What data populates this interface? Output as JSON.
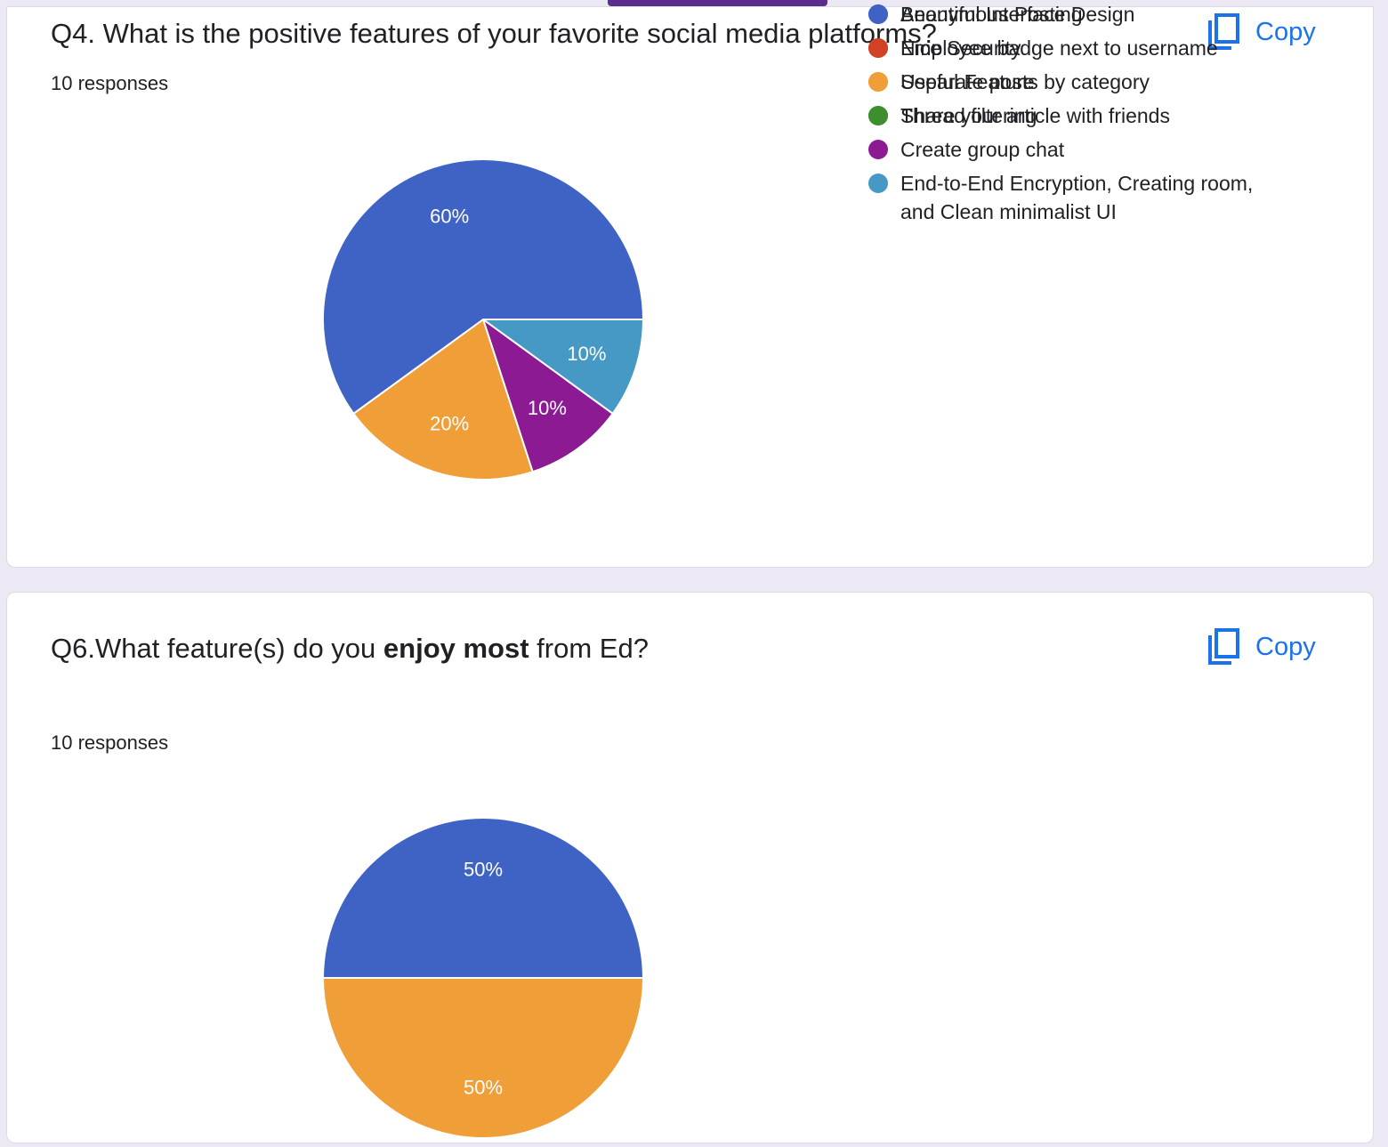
{
  "colors": {
    "accent": "#5c2d91",
    "link": "#1a73e8"
  },
  "q4": {
    "title": "Q4. What is the positive features of your favorite social media platforms?",
    "responses": "10 responses",
    "copy_label": "Copy",
    "chart_data": {
      "type": "pie",
      "slices": [
        {
          "label": "Beautiful Interface Design",
          "value": 60,
          "color": "#3f63c5",
          "text": "60%"
        },
        {
          "label": "Nice Security",
          "value": 0,
          "color": "#d14124",
          "text": ""
        },
        {
          "label": "Useful Feature",
          "value": 20,
          "color": "#f09e38",
          "text": "20%"
        },
        {
          "label": "Share your article with friends",
          "value": 0,
          "color": "#3c8f2c",
          "text": ""
        },
        {
          "label": "Create group chat",
          "value": 10,
          "color": "#8c1a93",
          "text": "10%"
        },
        {
          "label": "End-to-End Encryption, Creating room, and Clean minimalist UI",
          "value": 10,
          "color": "#4699c4",
          "text": "10%"
        }
      ],
      "legend_position": "right"
    }
  },
  "q6": {
    "title_pre": "Q6.What feature(s) do you ",
    "title_bold": "enjoy most",
    "title_post": " from Ed?",
    "responses": "10 responses",
    "copy_label": "Copy",
    "chart_data": {
      "type": "pie",
      "slices": [
        {
          "label": "Anonymous Posting",
          "value": 50,
          "color": "#3f63c5",
          "text": "50%"
        },
        {
          "label": "Employee badge next to username",
          "value": 0,
          "color": "#d14124",
          "text": ""
        },
        {
          "label": "Separate posts by category",
          "value": 50,
          "color": "#f09e38",
          "text": "50%"
        },
        {
          "label": "Thread filtering",
          "value": 0,
          "color": "#3c8f2c",
          "text": ""
        }
      ],
      "legend_position": "right"
    }
  }
}
